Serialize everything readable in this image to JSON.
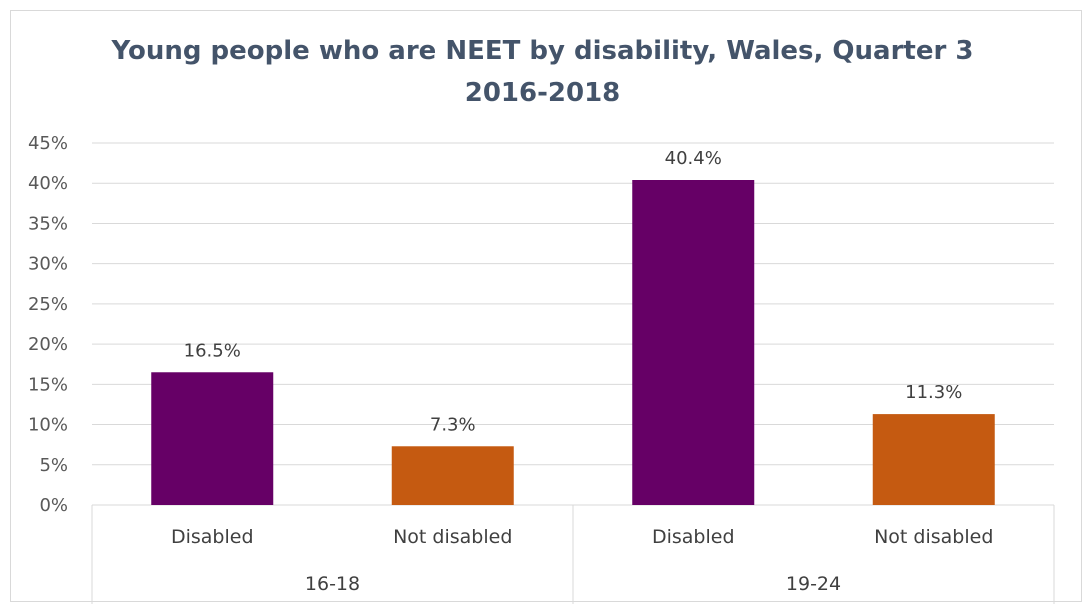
{
  "chart_data": {
    "type": "bar",
    "title": "Young people who are NEET by disability, Wales, Quarter 3 2016-2018",
    "title_lines": [
      "Young people who are NEET by disability, Wales, Quarter 3",
      "2016-2018"
    ],
    "groups": [
      {
        "label": "16-18",
        "bars": [
          {
            "category": "Disabled",
            "value": 16.5,
            "label": "16.5%",
            "color": "#660066"
          },
          {
            "category": "Not disabled",
            "value": 7.3,
            "label": "7.3%",
            "color": "#c55a11"
          }
        ]
      },
      {
        "label": "19-24",
        "bars": [
          {
            "category": "Disabled",
            "value": 40.4,
            "label": "40.4%",
            "color": "#660066"
          },
          {
            "category": "Not disabled",
            "value": 11.3,
            "label": "11.3%",
            "color": "#c55a11"
          }
        ]
      }
    ],
    "y_ticks": [
      "0%",
      "5%",
      "10%",
      "15%",
      "20%",
      "25%",
      "30%",
      "35%",
      "40%",
      "45%"
    ],
    "ylim": [
      0,
      45
    ],
    "grid": true,
    "legend": "none",
    "colors": {
      "disabled": "#660066",
      "not_disabled": "#c55a11",
      "gridline": "#d9d9d9",
      "title": "#44546a"
    }
  }
}
